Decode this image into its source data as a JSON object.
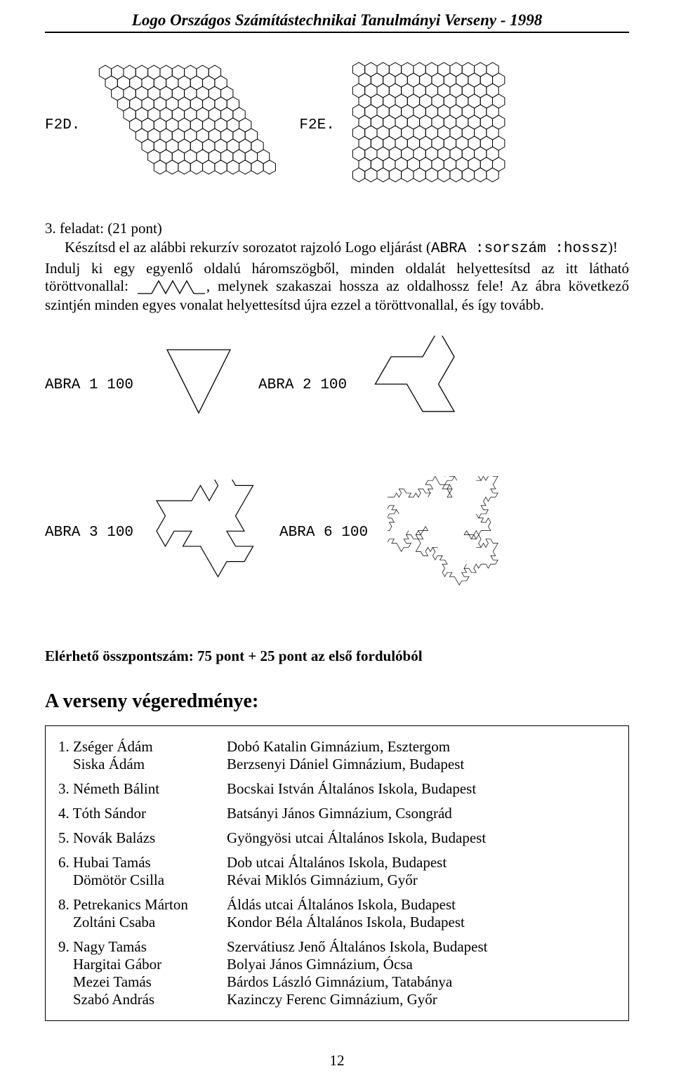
{
  "header": {
    "title": "Logo Országos Számítástechnikai Tanulmányi Verseny - 1998"
  },
  "figures": {
    "f2d_label": "F2D.",
    "f2e_label": "F2E.",
    "hex_stroke": "#000000",
    "hex_fill": "#ffffff"
  },
  "task": {
    "number": "3. feladat:",
    "points": "(21 pont)",
    "line1": "Készítsd el az alábbi rekurzív sorozatot rajzoló Logo eljárást (",
    "code1": "ABRA :sorszám :hossz",
    "line1end": ")!",
    "line2": "Indulj ki egy egyenlő oldalú háromszögből, minden oldalát helyettesítsd az itt látható töröttvonallal: ",
    "line2b": ", melynek szakaszai hossza az oldalhossz fele! Az ábra következő szintjén minden egyes vonalat helyettesítsd újra ezzel a töröttvonallal, és így tovább."
  },
  "abra": {
    "a1": "ABRA 1 100",
    "a2": "ABRA 2 100",
    "a3": "ABRA 3 100",
    "a6": "ABRA 6 100",
    "stroke": "#000000"
  },
  "score_line": "Elérhető összpontszám: 75 pont + 25 pont az első fordulóból",
  "results": {
    "title": "A verseny végeredménye:",
    "rows": [
      {
        "rank": "1.",
        "names": [
          "Zséger Ádám",
          "Siska Ádám"
        ],
        "schools": [
          "Dobó Katalin Gimnázium, Esztergom",
          "Berzsenyi Dániel Gimnázium, Budapest"
        ]
      },
      {
        "rank": "3.",
        "names": [
          "Németh Bálint"
        ],
        "schools": [
          "Bocskai István Általános Iskola, Budapest"
        ]
      },
      {
        "rank": "4.",
        "names": [
          "Tóth Sándor"
        ],
        "schools": [
          "Batsányi János Gimnázium, Csongrád"
        ]
      },
      {
        "rank": "5.",
        "names": [
          "Novák Balázs"
        ],
        "schools": [
          "Gyöngyösi utcai Általános Iskola, Budapest"
        ]
      },
      {
        "rank": "6.",
        "names": [
          "Hubai Tamás",
          "Dömötör Csilla"
        ],
        "schools": [
          "Dob utcai Általános Iskola, Budapest",
          "Révai Miklós Gimnázium, Győr"
        ]
      },
      {
        "rank": "8.",
        "names": [
          "Petrekanics Márton",
          "Zoltáni Csaba"
        ],
        "schools": [
          "Áldás utcai Általános Iskola, Budapest",
          "Kondor Béla Általános Iskola, Budapest"
        ]
      },
      {
        "rank": "9.",
        "names": [
          "Nagy Tamás",
          "Hargitai Gábor",
          "Mezei Tamás",
          "Szabó András"
        ],
        "schools": [
          "Szervátiusz Jenő Általános Iskola, Budapest",
          "Bolyai János Gimnázium, Ócsa",
          "Bárdos László Gimnázium, Tatabánya",
          "Kazinczy Ferenc Gimnázium, Győr"
        ]
      }
    ]
  },
  "page_number": "12",
  "colors": {
    "text": "#000000",
    "bg": "#ffffff"
  }
}
